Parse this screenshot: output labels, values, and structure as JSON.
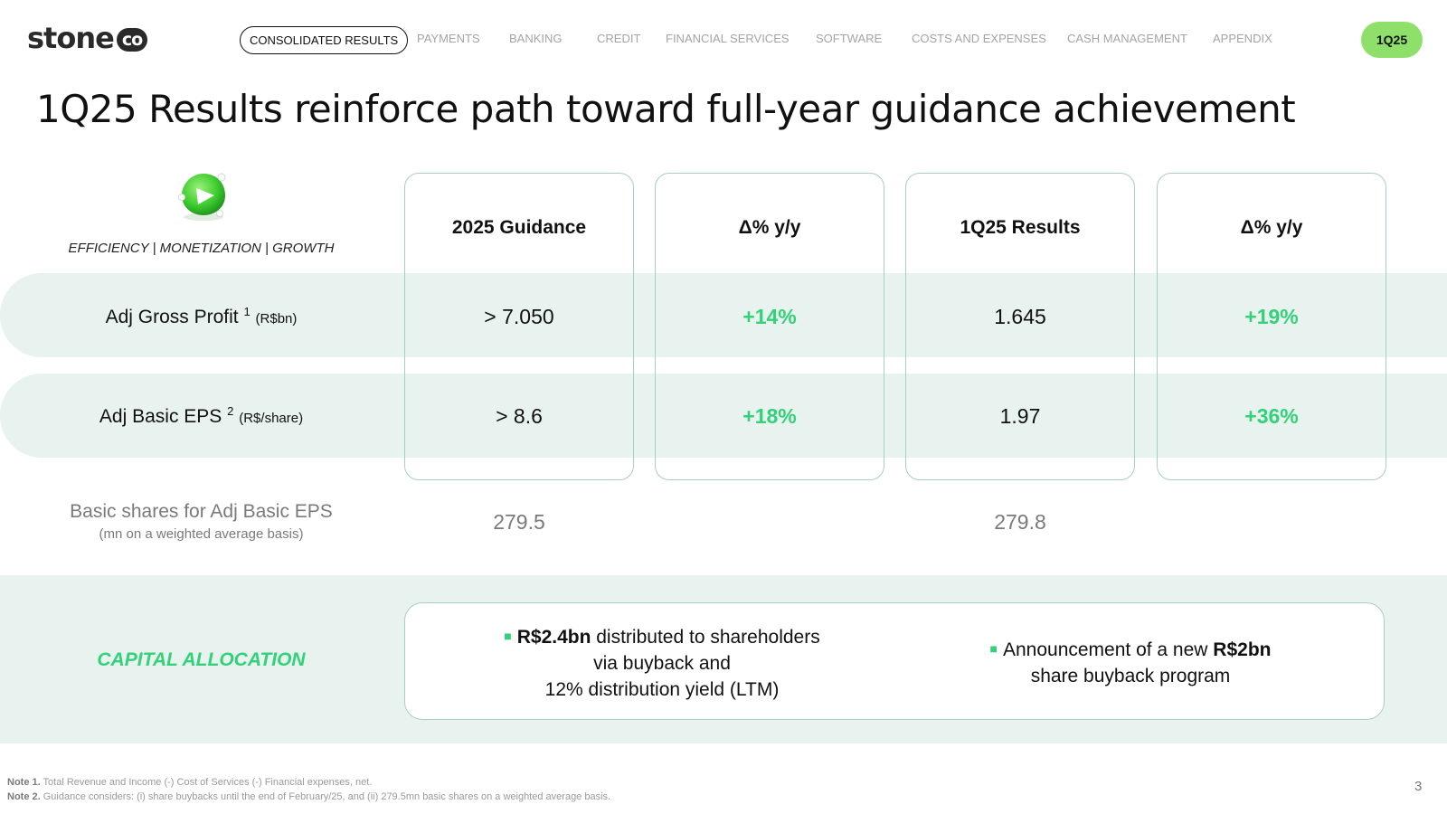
{
  "logo": {
    "text": "stone",
    "badge": "co"
  },
  "nav": {
    "items": [
      "CONSOLIDATED RESULTS",
      "PAYMENTS",
      "BANKING",
      "CREDIT",
      "FINANCIAL SERVICES",
      "SOFTWARE",
      "COSTS AND EXPENSES",
      "CASH MANAGEMENT",
      "APPENDIX"
    ],
    "period": "1Q25"
  },
  "title": "1Q25 Results reinforce path toward full-year guidance achievement",
  "tagline": "EFFICIENCY | MONETIZATION | GROWTH",
  "columns": [
    "2025 Guidance",
    "Δ% y/y",
    "1Q25 Results",
    "Δ% y/y"
  ],
  "rows": [
    {
      "label": "Adj Gross Profit",
      "note": "1",
      "unit": "(R$bn)",
      "values": [
        "> 7.050",
        "+14%",
        "1.645",
        "+19%"
      ]
    },
    {
      "label": "Adj Basic EPS",
      "note": "2",
      "unit": "(R$/share)",
      "values": [
        "> 8.6",
        "+18%",
        "1.97",
        "+36%"
      ]
    }
  ],
  "basic_shares": {
    "label": "Basic shares for Adj Basic EPS",
    "sub": "(mn on a weighted average basis)",
    "guidance": "279.5",
    "results": "279.8"
  },
  "capital_allocation": {
    "label": "CAPITAL ALLOCATION",
    "bullet1": {
      "bold": "R$2.4bn",
      "rest": " distributed to shareholders",
      "line2": "via buyback and",
      "line3": "12% distribution yield (LTM)"
    },
    "bullet2": {
      "pre": "Announcement of a new ",
      "bold": "R$2bn",
      "line2": "share buyback program"
    }
  },
  "notes": {
    "note1_label": "Note 1.",
    "note1_text": " Total Revenue and Income (-) Cost of Services (-) Financial expenses, net.",
    "note2_label": "Note 2.",
    "note2_text": " Guidance considers: (i) share buybacks until the end of February/25, and (ii) 279.5mn basic shares on a weighted average basis."
  },
  "page_number": "3",
  "colors": {
    "accent_green": "#33d17a",
    "badge_green": "#8ee06a",
    "band": "#e8f2ee",
    "card_border": "#a9cfc3"
  }
}
